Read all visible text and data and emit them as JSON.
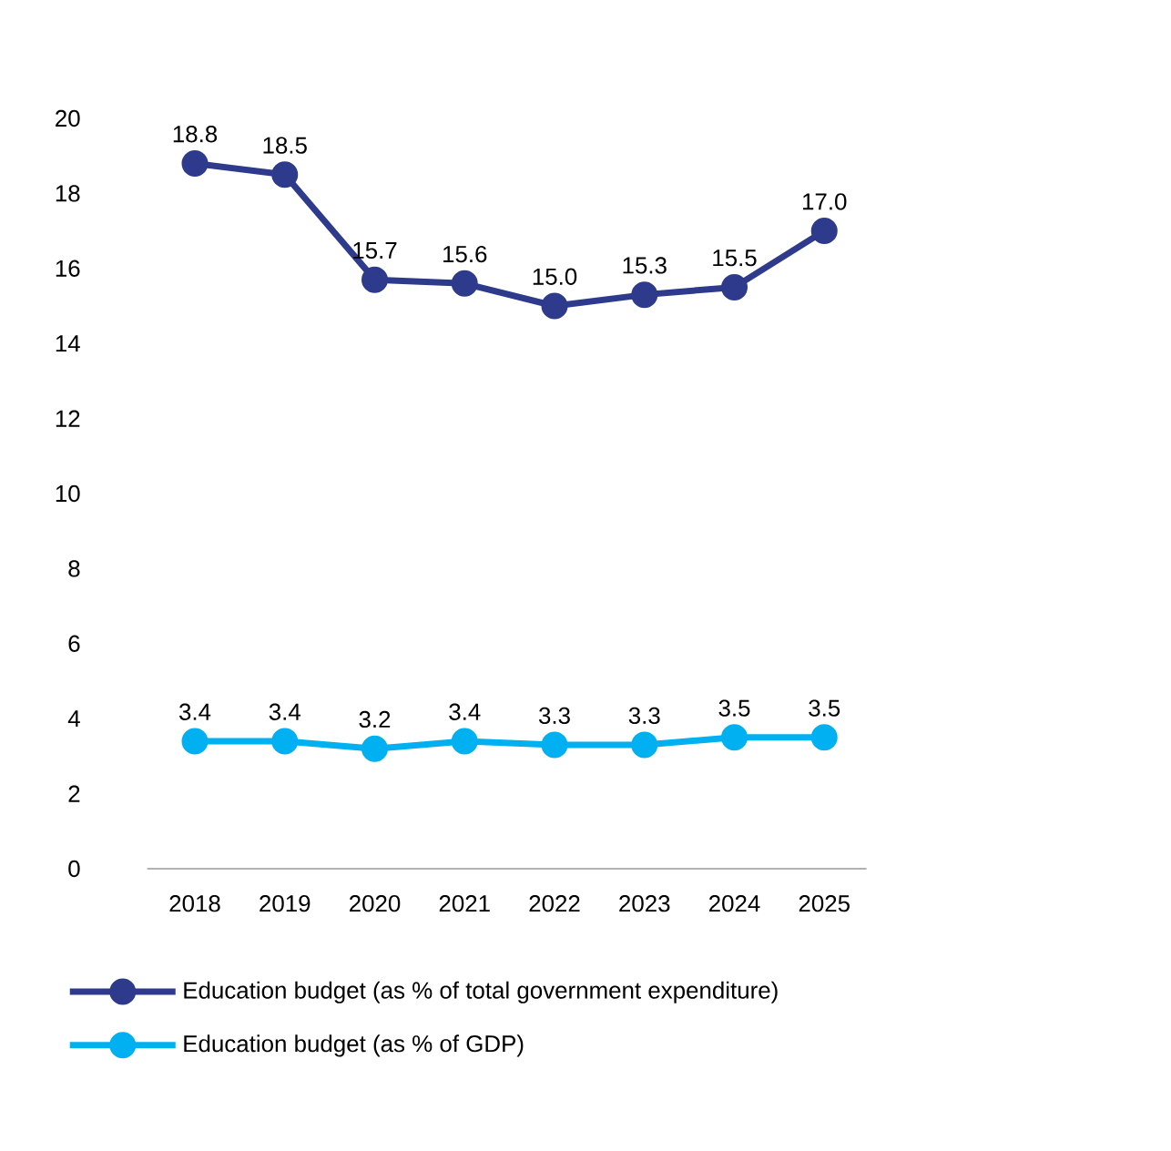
{
  "chart_data": {
    "type": "line",
    "categories": [
      "2018",
      "2019",
      "2020",
      "2021",
      "2022",
      "2023",
      "2024",
      "2025"
    ],
    "series": [
      {
        "name": "Education budget (as % of total government expenditure)",
        "color": "#2e3a8c",
        "values": [
          18.8,
          18.5,
          15.7,
          15.6,
          15.0,
          15.3,
          15.5,
          17.0
        ],
        "value_labels": [
          "18.8",
          "18.5",
          "15.7",
          "15.6",
          "15.0",
          "15.3",
          "15.5",
          "17.0"
        ]
      },
      {
        "name": "Education budget (as % of GDP)",
        "color": "#00b0f0",
        "values": [
          3.4,
          3.4,
          3.2,
          3.4,
          3.3,
          3.3,
          3.5,
          3.5
        ],
        "value_labels": [
          "3.4",
          "3.4",
          "3.2",
          "3.4",
          "3.3",
          "3.3",
          "3.5",
          "3.5"
        ]
      }
    ],
    "ylim": [
      0,
      20
    ],
    "yticks": [
      0,
      2,
      4,
      6,
      8,
      10,
      12,
      14,
      16,
      18,
      20
    ],
    "legend": "bottom",
    "marker": "circle",
    "line_style": "solid"
  }
}
